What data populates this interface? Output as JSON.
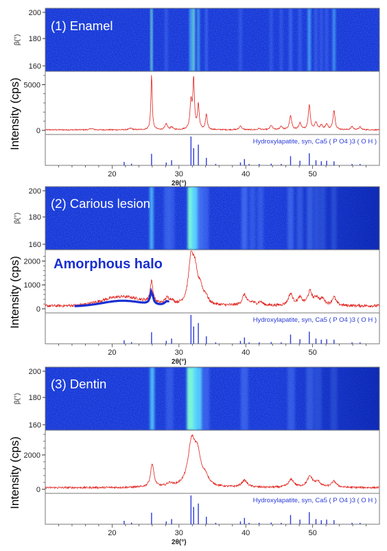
{
  "colors": {
    "pattern_fill": "#0f2fd4",
    "frame": "#777777",
    "trace": "#e0201a",
    "reference": "#2b3bd6",
    "halo": "#1a2fd0",
    "label_white": "#ffffff",
    "ylabel": "#000000"
  },
  "common": {
    "ylabel": "Intensity (cps)",
    "beta_label": "β(°)",
    "beta_ticks": [
      "200",
      "180",
      "160"
    ],
    "xlabel": "2θ(°)",
    "x_ticks": [
      "20",
      "30",
      "40",
      "50"
    ],
    "reference_label": "Hydroxylapatite, syn, Ca5 ( P O4 )3 ( O H )"
  },
  "annotation": {
    "halo_label": "Amorphous halo"
  },
  "chart_data": [
    {
      "type": "line",
      "title": "(1) Enamel",
      "xlabel": "2θ(°)",
      "ylabel": "Intensity (cps)",
      "xlim": [
        10,
        60
      ],
      "ylim": [
        0,
        6000
      ],
      "y_ticks": [
        "5000",
        "0"
      ],
      "y_tick_values": [
        5000,
        0
      ],
      "baseline": 60,
      "peaks": [
        {
          "x": 16.9,
          "y": 150,
          "w": 0.25
        },
        {
          "x": 22.8,
          "y": 160,
          "w": 0.25
        },
        {
          "x": 25.9,
          "y": 6000,
          "w": 0.12
        },
        {
          "x": 28.1,
          "y": 650,
          "w": 0.2
        },
        {
          "x": 28.9,
          "y": 280,
          "w": 0.2
        },
        {
          "x": 31.8,
          "y": 3000,
          "w": 0.18
        },
        {
          "x": 32.2,
          "y": 5300,
          "w": 0.14
        },
        {
          "x": 32.9,
          "y": 2700,
          "w": 0.15
        },
        {
          "x": 34.1,
          "y": 1700,
          "w": 0.15
        },
        {
          "x": 39.2,
          "y": 450,
          "w": 0.2
        },
        {
          "x": 42.0,
          "y": 150,
          "w": 0.2
        },
        {
          "x": 43.8,
          "y": 480,
          "w": 0.2
        },
        {
          "x": 45.3,
          "y": 380,
          "w": 0.2
        },
        {
          "x": 46.7,
          "y": 1500,
          "w": 0.2
        },
        {
          "x": 48.1,
          "y": 700,
          "w": 0.2
        },
        {
          "x": 49.5,
          "y": 2700,
          "w": 0.18
        },
        {
          "x": 50.5,
          "y": 800,
          "w": 0.2
        },
        {
          "x": 51.3,
          "y": 500,
          "w": 0.2
        },
        {
          "x": 52.1,
          "y": 600,
          "w": 0.2
        },
        {
          "x": 53.2,
          "y": 2150,
          "w": 0.18
        },
        {
          "x": 55.9,
          "y": 350,
          "w": 0.2
        },
        {
          "x": 57.1,
          "y": 300,
          "w": 0.2
        }
      ],
      "halo": null,
      "noise": 60,
      "stripe_max": 56,
      "beam_fade": false
    },
    {
      "type": "line",
      "title": "(2) Carious lesion",
      "xlabel": "2θ(°)",
      "ylabel": "Intensity (cps)",
      "xlim": [
        10,
        60
      ],
      "ylim": [
        0,
        2300
      ],
      "y_ticks": [
        "2000",
        "1000",
        "0"
      ],
      "y_tick_values": [
        2000,
        1000,
        0
      ],
      "baseline": 120,
      "peaks": [
        {
          "x": 25.9,
          "y": 900,
          "w": 0.25
        },
        {
          "x": 28.2,
          "y": 250,
          "w": 0.4
        },
        {
          "x": 28.9,
          "y": 150,
          "w": 0.4
        },
        {
          "x": 31.8,
          "y": 1800,
          "w": 0.45
        },
        {
          "x": 32.4,
          "y": 1200,
          "w": 0.45
        },
        {
          "x": 33.2,
          "y": 600,
          "w": 0.4
        },
        {
          "x": 34.0,
          "y": 300,
          "w": 0.4
        },
        {
          "x": 39.8,
          "y": 450,
          "w": 0.4
        },
        {
          "x": 41.0,
          "y": 120,
          "w": 0.4
        },
        {
          "x": 42.2,
          "y": 150,
          "w": 0.4
        },
        {
          "x": 46.7,
          "y": 480,
          "w": 0.4
        },
        {
          "x": 48.1,
          "y": 300,
          "w": 0.4
        },
        {
          "x": 49.6,
          "y": 560,
          "w": 0.4
        },
        {
          "x": 50.6,
          "y": 300,
          "w": 0.4
        },
        {
          "x": 51.5,
          "y": 250,
          "w": 0.4
        },
        {
          "x": 53.2,
          "y": 350,
          "w": 0.35
        }
      ],
      "halo": {
        "x_center": 21.5,
        "height": 380,
        "width": 4.2
      },
      "noise": 60,
      "stripe_max": 22,
      "beam_fade": true
    },
    {
      "type": "line",
      "title": "(3) Dentin",
      "xlabel": "2θ(°)",
      "ylabel": "Intensity (cps)",
      "xlim": [
        10,
        60
      ],
      "ylim": [
        0,
        3200
      ],
      "y_ticks": [
        "2000",
        "0"
      ],
      "y_tick_values": [
        2000,
        0
      ],
      "baseline": 90,
      "peaks": [
        {
          "x": 26.0,
          "y": 1350,
          "w": 0.3
        },
        {
          "x": 28.6,
          "y": 180,
          "w": 0.5
        },
        {
          "x": 31.9,
          "y": 2500,
          "w": 0.65
        },
        {
          "x": 32.8,
          "y": 1600,
          "w": 0.6
        },
        {
          "x": 34.0,
          "y": 450,
          "w": 0.5
        },
        {
          "x": 39.8,
          "y": 400,
          "w": 0.5
        },
        {
          "x": 46.8,
          "y": 450,
          "w": 0.5
        },
        {
          "x": 49.6,
          "y": 620,
          "w": 0.5
        },
        {
          "x": 50.8,
          "y": 300,
          "w": 0.5
        },
        {
          "x": 53.2,
          "y": 350,
          "w": 0.45
        }
      ],
      "halo": null,
      "noise": 55,
      "stripe_max": 30,
      "beam_fade": true
    }
  ],
  "reference_lines": [
    {
      "x": 21.8,
      "h": 0.12
    },
    {
      "x": 22.9,
      "h": 0.06
    },
    {
      "x": 25.9,
      "h": 0.4
    },
    {
      "x": 28.1,
      "h": 0.1
    },
    {
      "x": 28.9,
      "h": 0.18
    },
    {
      "x": 31.8,
      "h": 1.0
    },
    {
      "x": 32.2,
      "h": 0.6
    },
    {
      "x": 32.9,
      "h": 0.72
    },
    {
      "x": 34.1,
      "h": 0.26
    },
    {
      "x": 35.5,
      "h": 0.05
    },
    {
      "x": 39.2,
      "h": 0.1
    },
    {
      "x": 39.8,
      "h": 0.22
    },
    {
      "x": 40.5,
      "h": 0.05
    },
    {
      "x": 42.0,
      "h": 0.05
    },
    {
      "x": 43.8,
      "h": 0.06
    },
    {
      "x": 45.3,
      "h": 0.05
    },
    {
      "x": 46.7,
      "h": 0.32
    },
    {
      "x": 48.1,
      "h": 0.16
    },
    {
      "x": 49.5,
      "h": 0.42
    },
    {
      "x": 50.5,
      "h": 0.18
    },
    {
      "x": 51.3,
      "h": 0.14
    },
    {
      "x": 52.1,
      "h": 0.16
    },
    {
      "x": 53.2,
      "h": 0.14
    },
    {
      "x": 55.9,
      "h": 0.05
    },
    {
      "x": 57.1,
      "h": 0.05
    }
  ]
}
